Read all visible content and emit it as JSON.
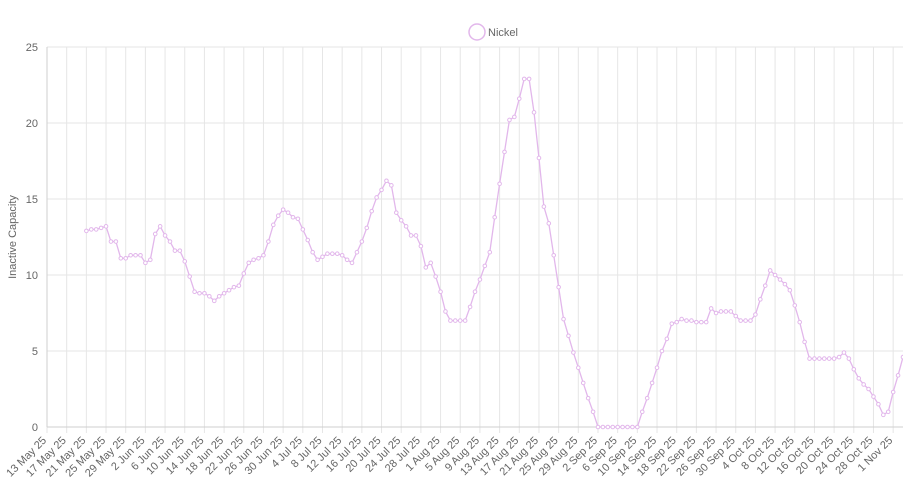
{
  "chart_data": {
    "type": "line",
    "ylabel": "Inactive Capacity",
    "ylim": [
      0,
      25
    ],
    "y_ticks": [
      "0",
      "5",
      "10",
      "15",
      "20",
      "25"
    ],
    "grid": true,
    "legend_position": "top-center",
    "x_labels": [
      "13 May 25",
      "17 May 25",
      "21 May 25",
      "25 May 25",
      "29 May 25",
      "2 Jun 25",
      "6 Jun 25",
      "10 Jun 25",
      "14 Jun 25",
      "18 Jun 25",
      "22 Jun 25",
      "26 Jun 25",
      "30 Jun 25",
      "4 Jul 25",
      "8 Jul 25",
      "12 Jul 25",
      "16 Jul 25",
      "20 Jul 25",
      "24 Jul 25",
      "28 Jul 25",
      "1 Aug 25",
      "5 Aug 25",
      "9 Aug 25",
      "13 Aug 25",
      "17 Aug 25",
      "21 Aug 25",
      "25 Aug 25",
      "29 Aug 25",
      "2 Sep 25",
      "6 Sep 25",
      "10 Sep 25",
      "14 Sep 25",
      "18 Sep 25",
      "22 Sep 25",
      "26 Sep 25",
      "30 Sep 25",
      "4 Oct 25",
      "8 Oct 25",
      "12 Oct 25",
      "16 Oct 25",
      "20 Oct 25",
      "24 Oct 25",
      "28 Oct 25",
      "1 Nov 25"
    ],
    "series": [
      {
        "name": "Nickel",
        "color": "#e2b7eb",
        "values": [
          null,
          null,
          null,
          null,
          null,
          null,
          null,
          null,
          12.9,
          13.0,
          13.0,
          13.1,
          13.2,
          12.2,
          12.2,
          11.1,
          11.1,
          11.3,
          11.3,
          11.3,
          10.8,
          11.0,
          12.7,
          13.2,
          12.6,
          12.2,
          11.6,
          11.6,
          10.9,
          9.9,
          8.9,
          8.8,
          8.8,
          8.6,
          8.3,
          8.6,
          8.8,
          9.0,
          9.2,
          9.3,
          10.1,
          10.8,
          11.0,
          11.1,
          11.3,
          12.2,
          13.3,
          13.9,
          14.3,
          14.1,
          13.8,
          13.7,
          13.0,
          12.3,
          11.5,
          11.0,
          11.2,
          11.4,
          11.4,
          11.4,
          11.3,
          11.0,
          10.8,
          11.5,
          12.2,
          13.1,
          14.2,
          15.1,
          15.6,
          16.2,
          15.9,
          14.1,
          13.6,
          13.2,
          12.6,
          12.6,
          11.9,
          10.5,
          10.8,
          9.9,
          8.9,
          7.6,
          7.0,
          7.0,
          7.0,
          7.0,
          7.9,
          8.9,
          9.7,
          10.6,
          11.5,
          13.8,
          16.0,
          18.1,
          20.2,
          20.4,
          21.6,
          22.9,
          22.9,
          20.7,
          17.7,
          14.5,
          13.4,
          11.3,
          9.2,
          7.1,
          6.0,
          4.9,
          3.9,
          2.9,
          1.9,
          1.0,
          0,
          0,
          0,
          0,
          0,
          0,
          0,
          0,
          0,
          1.0,
          1.9,
          2.9,
          3.9,
          5.0,
          5.8,
          6.8,
          6.9,
          7.1,
          7.0,
          7.0,
          6.9,
          6.9,
          6.9,
          7.8,
          7.5,
          7.6,
          7.6,
          7.6,
          7.3,
          7.0,
          7.0,
          7.0,
          7.4,
          8.4,
          9.3,
          10.3,
          10.0,
          9.7,
          9.4,
          9.0,
          8.0,
          6.9,
          5.6,
          4.5,
          4.5,
          4.5,
          4.5,
          4.5,
          4.5,
          4.6,
          4.9,
          4.5,
          3.8,
          3.2,
          2.8,
          2.5,
          2.0,
          1.5,
          0.8,
          1.0,
          2.3,
          3.4,
          4.6
        ]
      }
    ]
  }
}
